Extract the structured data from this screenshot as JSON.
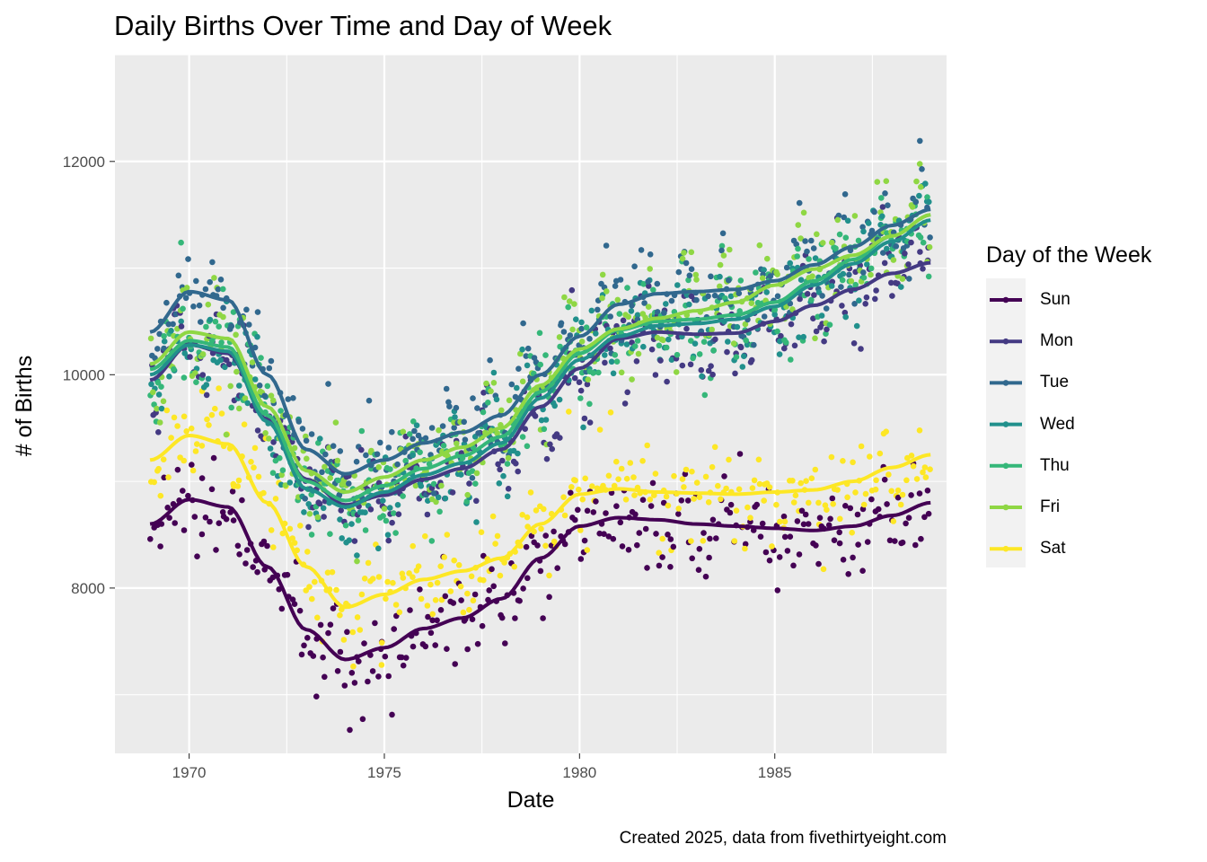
{
  "chart_data": {
    "type": "scatter",
    "title": "Daily Births Over Time and Day of Week",
    "xlabel": "Date",
    "ylabel": "# of Births",
    "caption": "Created 2025, data from fivethirtyeight.com",
    "legend_title": "Day of the Week",
    "legend_position": "right",
    "grid": true,
    "xlim": [
      1968.1,
      1989.4
    ],
    "ylim": [
      6450,
      13000
    ],
    "x_ticks": [
      1970,
      1975,
      1980,
      1985
    ],
    "x_tick_labels": [
      "1970",
      "1975",
      "1980",
      "1985"
    ],
    "y_ticks": [
      8000,
      10000,
      12000
    ],
    "y_tick_labels": [
      "8000",
      "10000",
      "12000"
    ],
    "x_range_data": [
      1969.0,
      1988.99
    ],
    "series": [
      {
        "name": "Sun",
        "color": "#440154",
        "smooth_x": [
          1969,
          1970,
          1971,
          1972,
          1973,
          1974,
          1975,
          1976,
          1977,
          1978,
          1979,
          1980,
          1981,
          1982,
          1983,
          1984,
          1985,
          1986,
          1987,
          1988,
          1989
        ],
        "smooth_y": [
          8600,
          8830,
          8760,
          8200,
          7610,
          7330,
          7440,
          7620,
          7720,
          7900,
          8280,
          8580,
          8660,
          8640,
          8600,
          8580,
          8560,
          8540,
          8580,
          8680,
          8800
        ]
      },
      {
        "name": "Mon",
        "color": "#443A83",
        "smooth_x": [
          1969,
          1970,
          1971,
          1972,
          1973,
          1974,
          1975,
          1976,
          1977,
          1978,
          1979,
          1980,
          1981,
          1982,
          1983,
          1984,
          1985,
          1986,
          1987,
          1988,
          1989
        ],
        "smooth_y": [
          9950,
          10280,
          10200,
          9580,
          9020,
          8780,
          8870,
          9020,
          9120,
          9300,
          9700,
          10060,
          10340,
          10400,
          10380,
          10390,
          10500,
          10650,
          10800,
          10950,
          11050
        ]
      },
      {
        "name": "Tue",
        "color": "#31688E",
        "smooth_x": [
          1969,
          1970,
          1971,
          1972,
          1973,
          1974,
          1975,
          1976,
          1977,
          1978,
          1979,
          1980,
          1981,
          1982,
          1983,
          1984,
          1985,
          1986,
          1987,
          1988,
          1989
        ],
        "smooth_y": [
          10400,
          10780,
          10700,
          10000,
          9300,
          9070,
          9200,
          9360,
          9460,
          9620,
          10000,
          10360,
          10660,
          10760,
          10780,
          10800,
          10880,
          11030,
          11200,
          11400,
          11550
        ]
      },
      {
        "name": "Wed",
        "color": "#21908C",
        "smooth_x": [
          1969,
          1970,
          1971,
          1972,
          1973,
          1974,
          1975,
          1976,
          1977,
          1978,
          1979,
          1980,
          1981,
          1982,
          1983,
          1984,
          1985,
          1986,
          1987,
          1988,
          1989
        ],
        "smooth_y": [
          10000,
          10280,
          10220,
          9560,
          8930,
          8760,
          8900,
          9060,
          9170,
          9360,
          9780,
          10140,
          10360,
          10460,
          10480,
          10520,
          10640,
          10840,
          11040,
          11250,
          11450
        ]
      },
      {
        "name": "Thu",
        "color": "#35B779",
        "smooth_x": [
          1969,
          1970,
          1971,
          1972,
          1973,
          1974,
          1975,
          1976,
          1977,
          1978,
          1979,
          1980,
          1981,
          1982,
          1983,
          1984,
          1985,
          1986,
          1987,
          1988,
          1989
        ],
        "smooth_y": [
          10050,
          10320,
          10260,
          9620,
          9000,
          8820,
          8960,
          9120,
          9240,
          9420,
          9840,
          10200,
          10420,
          10500,
          10520,
          10560,
          10680,
          10880,
          11080,
          11300,
          11500
        ]
      },
      {
        "name": "Fri",
        "color": "#8FD744",
        "smooth_x": [
          1969,
          1970,
          1971,
          1972,
          1973,
          1974,
          1975,
          1976,
          1977,
          1978,
          1979,
          1980,
          1981,
          1982,
          1983,
          1984,
          1985,
          1986,
          1987,
          1988,
          1989
        ],
        "smooth_y": [
          10100,
          10400,
          10340,
          9700,
          9100,
          8900,
          9040,
          9200,
          9320,
          9500,
          9900,
          10240,
          10430,
          10530,
          10600,
          10680,
          10840,
          10990,
          11120,
          11300,
          11500
        ]
      },
      {
        "name": "Sat",
        "color": "#FDE725",
        "smooth_x": [
          1969,
          1970,
          1971,
          1972,
          1973,
          1974,
          1975,
          1976,
          1977,
          1978,
          1979,
          1980,
          1981,
          1982,
          1983,
          1984,
          1985,
          1986,
          1987,
          1988,
          1989
        ],
        "smooth_y": [
          9200,
          9430,
          9350,
          8800,
          8200,
          7820,
          7940,
          8080,
          8160,
          8280,
          8600,
          8880,
          8930,
          8900,
          8890,
          8880,
          8900,
          8920,
          9000,
          9130,
          9250
        ]
      }
    ]
  }
}
